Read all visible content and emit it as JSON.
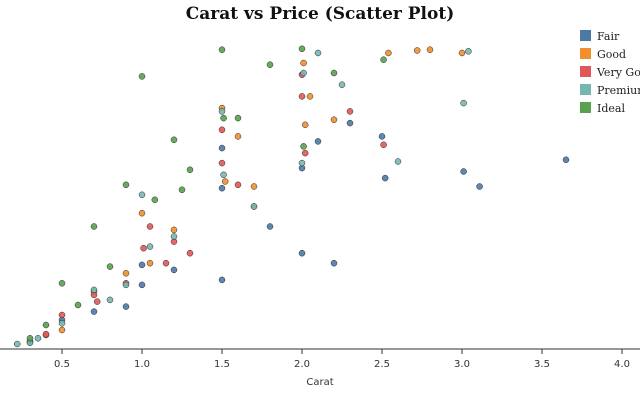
{
  "chart_data": {
    "type": "scatter",
    "title": "Carat vs Price (Scatter Plot)",
    "xlabel": "Carat",
    "ylabel": "",
    "xlim": [
      0.15,
      4.0
    ],
    "x_ticks": [
      "0.5",
      "1.0",
      "1.5",
      "2.0",
      "2.5",
      "3.0",
      "3.5",
      "4.0"
    ],
    "grid": false,
    "legend_position": "top-right",
    "series": [
      {
        "name": "Fair",
        "color": "#4e79a7",
        "x": [
          3.65,
          3.01,
          3.11,
          2.52,
          2.0,
          2.2,
          2.5,
          1.5,
          1.8,
          1.5,
          2.0,
          1.0,
          0.7,
          0.9,
          1.2,
          1.5,
          0.5,
          1.0,
          2.1,
          2.3
        ],
        "y": [
          11400,
          10700,
          9800,
          10300,
          5800,
          5200,
          12800,
          4200,
          7400,
          12100,
          10900,
          3900,
          2300,
          2600,
          4800,
          9700,
          1800,
          5100,
          12500,
          13600
        ]
      },
      {
        "name": "Good",
        "color": "#f28e2b",
        "x": [
          2.8,
          2.72,
          2.54,
          2.01,
          2.02,
          3.0,
          1.5,
          1.6,
          1.7,
          1.0,
          1.2,
          0.7,
          0.5,
          0.3,
          0.9,
          2.05,
          1.52,
          1.05,
          0.4,
          2.2
        ],
        "y": [
          18000,
          17950,
          17800,
          17200,
          13500,
          17800,
          14500,
          12800,
          9800,
          8200,
          7200,
          3500,
          1200,
          500,
          4600,
          15200,
          10100,
          5200,
          900,
          13800
        ]
      },
      {
        "name": "Very Good",
        "color": "#e15759",
        "x": [
          2.0,
          2.51,
          1.5,
          1.6,
          1.7,
          1.05,
          1.2,
          1.3,
          0.7,
          0.5,
          0.4,
          0.3,
          0.9,
          1.5,
          2.0,
          2.02,
          1.01,
          1.15,
          0.72,
          2.3
        ],
        "y": [
          15200,
          12300,
          11200,
          9900,
          8600,
          7400,
          6500,
          5800,
          3300,
          2100,
          950,
          480,
          4000,
          13200,
          16500,
          11800,
          6100,
          5200,
          2900,
          14300
        ]
      },
      {
        "name": "Premium",
        "color": "#76b7b2",
        "x": [
          2.1,
          3.04,
          3.01,
          2.01,
          2.0,
          1.5,
          1.51,
          1.7,
          1.0,
          1.2,
          0.7,
          0.5,
          0.35,
          0.3,
          0.9,
          1.05,
          2.25,
          2.6,
          0.22,
          0.8
        ],
        "y": [
          17800,
          17900,
          14800,
          16600,
          11200,
          14300,
          10500,
          8600,
          9300,
          6800,
          3600,
          1600,
          700,
          430,
          3900,
          6200,
          15900,
          11300,
          360,
          3000
        ]
      },
      {
        "name": "Ideal",
        "color": "#59a14f",
        "x": [
          1.5,
          2.0,
          1.51,
          2.01,
          1.8,
          1.0,
          1.2,
          1.3,
          0.7,
          0.5,
          0.4,
          0.3,
          0.9,
          0.8,
          1.6,
          2.2,
          1.25,
          1.08,
          2.51,
          0.6
        ],
        "y": [
          18000,
          18050,
          13900,
          12200,
          17100,
          16400,
          12600,
          10800,
          7400,
          4000,
          1500,
          700,
          9900,
          5000,
          13900,
          16600,
          9600,
          9000,
          17400,
          2700
        ]
      }
    ]
  }
}
